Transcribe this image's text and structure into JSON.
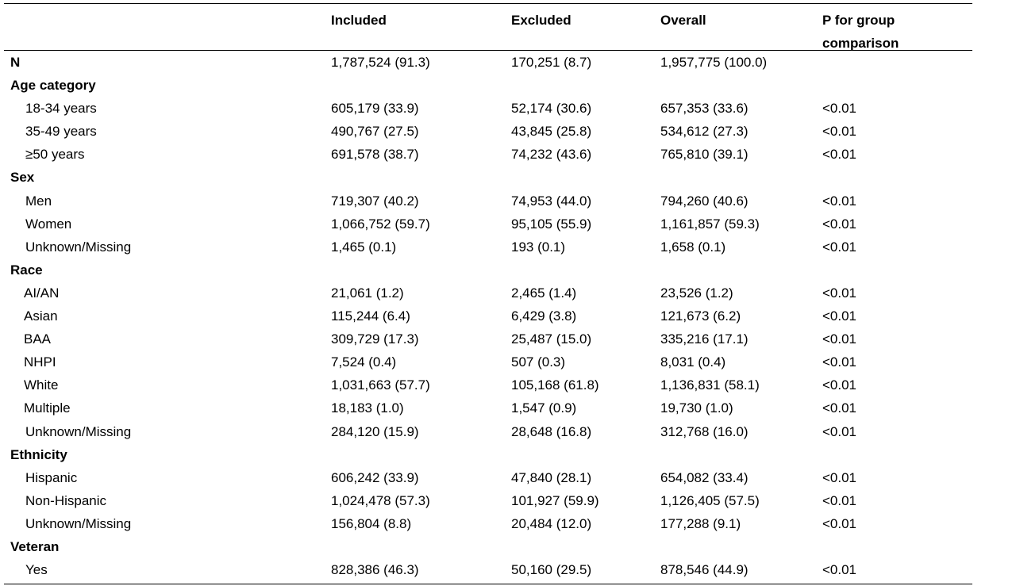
{
  "header": {
    "col_blank": "",
    "col_included": "Included",
    "col_excluded": "Excluded",
    "col_overall": "Overall",
    "col_p": "P for group comparison"
  },
  "rows": [
    {
      "label": "N",
      "included": "1,787,524 (91.3)",
      "excluded": "170,251 (8.7)",
      "overall": "1,957,775 (100.0)",
      "p": ""
    },
    {
      "label": "Age category",
      "included": "",
      "excluded": "",
      "overall": "",
      "p": ""
    },
    {
      "label": "18-34 years",
      "included": "605,179 (33.9)",
      "excluded": "52,174 (30.6)",
      "overall": "657,353 (33.6)",
      "p": "<0.01"
    },
    {
      "label": "35-49 years",
      "included": "490,767 (27.5)",
      "excluded": "43,845 (25.8)",
      "overall": "534,612 (27.3)",
      "p": "<0.01"
    },
    {
      "label": "≥50 years",
      "included": "691,578 (38.7)",
      "excluded": "74,232 (43.6)",
      "overall": "765,810 (39.1)",
      "p": "<0.01"
    },
    {
      "label": "Sex",
      "included": "",
      "excluded": "",
      "overall": "",
      "p": ""
    },
    {
      "label": "Men",
      "included": "719,307 (40.2)",
      "excluded": "74,953 (44.0)",
      "overall": "794,260 (40.6)",
      "p": "<0.01"
    },
    {
      "label": "Women",
      "included": "1,066,752 (59.7)",
      "excluded": "95,105 (55.9)",
      "overall": "1,161,857 (59.3)",
      "p": "<0.01"
    },
    {
      "label": "Unknown/Missing",
      "included": "1,465 (0.1)",
      "excluded": "193 (0.1)",
      "overall": "1,658 (0.1)",
      "p": "<0.01"
    },
    {
      "label": "Race",
      "included": "",
      "excluded": "",
      "overall": "",
      "p": ""
    },
    {
      "label": "AI/AN",
      "included": "21,061 (1.2)",
      "excluded": "2,465 (1.4)",
      "overall": "23,526 (1.2)",
      "p": "<0.01"
    },
    {
      "label": "Asian",
      "included": "115,244 (6.4)",
      "excluded": "6,429 (3.8)",
      "overall": "121,673 (6.2)",
      "p": "<0.01"
    },
    {
      "label": "BAA",
      "included": "309,729 (17.3)",
      "excluded": "25,487 (15.0)",
      "overall": "335,216 (17.1)",
      "p": "<0.01"
    },
    {
      "label": "NHPI",
      "included": "7,524 (0.4)",
      "excluded": "507 (0.3)",
      "overall": "8,031 (0.4)",
      "p": "<0.01"
    },
    {
      "label": "White",
      "included": "1,031,663 (57.7)",
      "excluded": "105,168 (61.8)",
      "overall": "1,136,831 (58.1)",
      "p": "<0.01"
    },
    {
      "label": "Multiple",
      "included": "18,183 (1.0)",
      "excluded": "1,547 (0.9)",
      "overall": "19,730 (1.0)",
      "p": "<0.01"
    },
    {
      "label": "Unknown/Missing",
      "included": "284,120 (15.9)",
      "excluded": "28,648 (16.8)",
      "overall": "312,768 (16.0)",
      "p": "<0.01"
    },
    {
      "label": "Ethnicity",
      "included": "",
      "excluded": "",
      "overall": "",
      "p": ""
    },
    {
      "label": "Hispanic",
      "included": "606,242 (33.9)",
      "excluded": "47,840 (28.1)",
      "overall": "654,082 (33.4)",
      "p": "<0.01"
    },
    {
      "label": "Non-Hispanic",
      "included": "1,024,478 (57.3)",
      "excluded": "101,927 (59.9)",
      "overall": "1,126,405 (57.5)",
      "p": "<0.01"
    },
    {
      "label": "Unknown/Missing",
      "included": "156,804 (8.8)",
      "excluded": "20,484 (12.0)",
      "overall": "177,288 (9.1)",
      "p": "<0.01"
    },
    {
      "label": "Veteran",
      "included": "",
      "excluded": "",
      "overall": "",
      "p": ""
    },
    {
      "label": "Yes",
      "included": "828,386 (46.3)",
      "excluded": "50,160 (29.5)",
      "overall": "878,546 (44.9)",
      "p": "<0.01"
    }
  ]
}
